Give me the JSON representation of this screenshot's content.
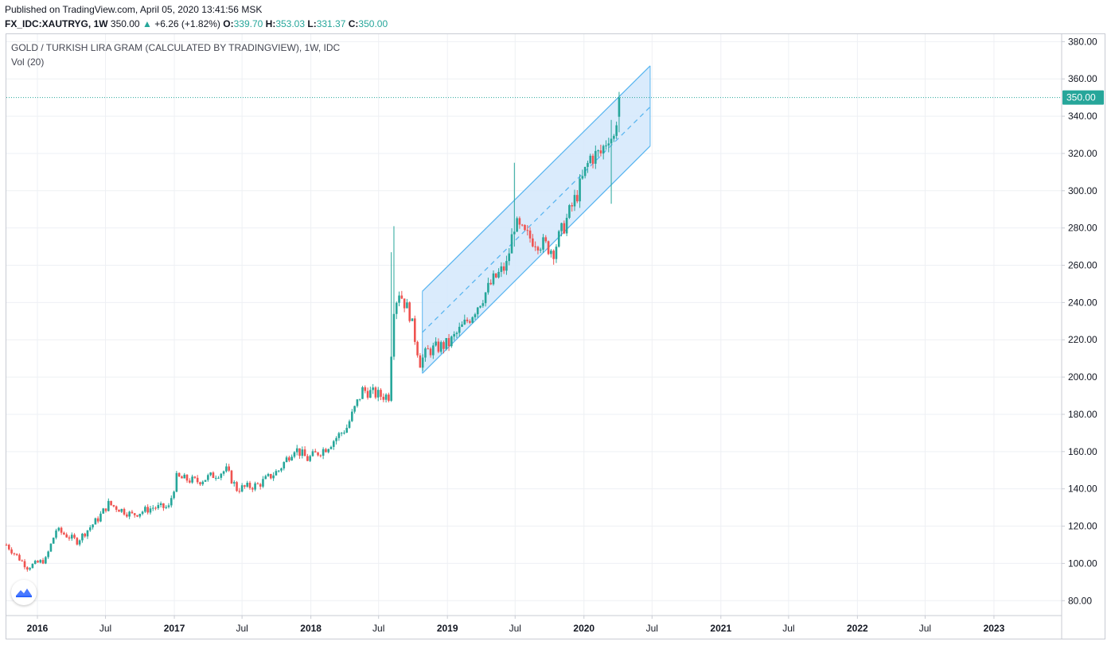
{
  "header": {
    "published": "Published on TradingView.com, April 05, 2020 13:41:56 MSK",
    "symbol": "FX_IDC:XAUTRYG, 1W",
    "last": "350.00",
    "change_arrow": "▲",
    "change": "+6.26 (+1.82%)",
    "o_label": "O:",
    "o_value": "339.70",
    "h_label": "H:",
    "h_value": "353.03",
    "l_label": "L:",
    "l_value": "331.37",
    "c_label": "C:",
    "c_value": "350.00"
  },
  "overlay": {
    "title": "GOLD / TURKISH LIRA GRAM (CALCULATED BY TRADINGVIEW), 1W, IDC",
    "indicator": "Vol (20)"
  },
  "logo_icon": "tradingview-logo-icon",
  "colors": {
    "up": "#26a69a",
    "down": "#ef5350",
    "channel_line": "#5bb6f0",
    "channel_fill": "#d4e8fb",
    "price_label_bg": "#26a69a",
    "grid": "#eef0f4"
  },
  "chart_data": {
    "type": "candlestick",
    "timeframe": "1W",
    "y_axis": {
      "position": "right",
      "range": [
        72,
        384
      ],
      "ticks": [
        80,
        100,
        120,
        140,
        160,
        180,
        200,
        220,
        240,
        260,
        280,
        300,
        320,
        340,
        360,
        380
      ],
      "tick_labels": [
        "80.00",
        "100.00",
        "120.00",
        "140.00",
        "160.00",
        "180.00",
        "200.00",
        "220.00",
        "240.00",
        "260.00",
        "280.00",
        "300.00",
        "320.00",
        "340.00",
        "360.00",
        "380.00"
      ]
    },
    "x_axis": {
      "range": [
        "2015-10-10",
        "2023-07-01"
      ],
      "ticks": [
        "2016-01-01",
        "2016-07-01",
        "2017-01-01",
        "2017-07-01",
        "2018-01-01",
        "2018-07-01",
        "2019-01-01",
        "2019-07-01",
        "2020-01-01",
        "2020-07-01",
        "2021-01-01",
        "2021-07-01",
        "2022-01-01",
        "2022-07-01",
        "2023-01-01"
      ],
      "tick_labels": [
        "2016",
        "Jul",
        "2017",
        "Jul",
        "2018",
        "Jul",
        "2019",
        "Jul",
        "2020",
        "Jul",
        "2021",
        "Jul",
        "2022",
        "Jul",
        "2023"
      ],
      "bold_labels": [
        "2016",
        "2017",
        "2018",
        "2019",
        "2020",
        "2021",
        "2022",
        "2023"
      ]
    },
    "last_price": 350.0,
    "last_price_label": "350.00",
    "grid": true,
    "channel": {
      "upper": [
        [
          "2018-10-26",
          246
        ],
        [
          "2020-06-26",
          367
        ]
      ],
      "middle": [
        [
          "2018-10-26",
          224
        ],
        [
          "2020-06-26",
          345
        ]
      ],
      "lower": [
        [
          "2018-10-26",
          202
        ],
        [
          "2020-06-26",
          324
        ]
      ]
    },
    "close_anchors": [
      [
        "2015-10-10",
        110
      ],
      [
        "2015-12-05",
        98
      ],
      [
        "2016-01-23",
        102
      ],
      [
        "2016-02-20",
        118
      ],
      [
        "2016-04-16",
        112
      ],
      [
        "2016-06-11",
        124
      ],
      [
        "2016-07-09",
        132
      ],
      [
        "2016-09-10",
        126
      ],
      [
        "2016-11-05",
        130
      ],
      [
        "2016-12-17",
        130
      ],
      [
        "2017-01-07",
        146
      ],
      [
        "2017-03-04",
        144
      ],
      [
        "2017-05-20",
        150
      ],
      [
        "2017-06-17",
        140
      ],
      [
        "2017-08-12",
        142
      ],
      [
        "2017-10-07",
        150
      ],
      [
        "2017-11-18",
        162
      ],
      [
        "2017-12-23",
        156
      ],
      [
        "2018-02-10",
        162
      ],
      [
        "2018-04-07",
        173
      ],
      [
        "2018-05-19",
        193
      ],
      [
        "2018-07-07",
        190
      ],
      [
        "2018-07-28",
        190
      ],
      [
        "2018-08-11",
        238
      ],
      [
        "2018-08-25",
        246
      ],
      [
        "2018-09-22",
        234
      ],
      [
        "2018-10-20",
        208
      ],
      [
        "2018-11-10",
        214
      ],
      [
        "2019-01-05",
        218
      ],
      [
        "2019-03-02",
        232
      ],
      [
        "2019-05-04",
        252
      ],
      [
        "2019-06-08",
        260
      ],
      [
        "2019-06-29",
        282
      ],
      [
        "2019-07-27",
        276
      ],
      [
        "2019-09-07",
        272
      ],
      [
        "2019-10-12",
        268
      ],
      [
        "2019-11-23",
        288
      ],
      [
        "2019-12-21",
        302
      ],
      [
        "2020-01-18",
        318
      ],
      [
        "2020-02-15",
        320
      ],
      [
        "2020-03-07",
        330
      ],
      [
        "2020-03-21",
        328
      ],
      [
        "2020-04-04",
        350
      ]
    ],
    "spikes": [
      {
        "date": "2018-08-04",
        "high": 267,
        "low": 193
      },
      {
        "date": "2018-08-11",
        "high": 281,
        "low": 225
      },
      {
        "date": "2019-06-29",
        "high": 315,
        "low": 270
      },
      {
        "date": "2020-03-14",
        "high": 338,
        "low": 293
      },
      {
        "date": "2020-04-04",
        "high": 353,
        "low": 331
      }
    ]
  }
}
